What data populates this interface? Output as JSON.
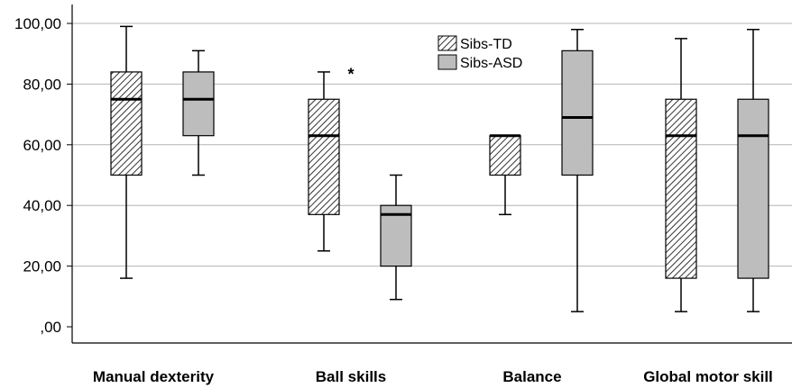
{
  "chart_data": {
    "type": "boxplot",
    "title": "",
    "xlabel": "",
    "ylabel": "",
    "ylim": [
      0,
      100
    ],
    "yticks": [
      "100,00",
      "80,00",
      "60,00",
      "40,00",
      "20,00",
      ",00"
    ],
    "ytick_values": [
      100,
      80,
      60,
      40,
      20,
      0
    ],
    "grid": true,
    "legend_position": "top-center",
    "categories": [
      "Manual dexterity",
      "Ball skills",
      "Balance",
      "Global motor skill"
    ],
    "series": [
      {
        "name": "Sibs-TD",
        "fill": "hatched",
        "boxes": [
          {
            "min": 16,
            "q1": 50,
            "median": 75,
            "q3": 84,
            "max": 99
          },
          {
            "min": 25,
            "q1": 37,
            "median": 63,
            "q3": 75,
            "max": 84,
            "outliers": [
              {
                "value": 85,
                "marker": "*"
              }
            ]
          },
          {
            "min": 37,
            "q1": 50,
            "median": 63,
            "q3": 63,
            "max": 63
          },
          {
            "min": 5,
            "q1": 16,
            "median": 63,
            "q3": 75,
            "max": 95
          }
        ]
      },
      {
        "name": "Sibs-ASD",
        "fill": "gray",
        "boxes": [
          {
            "min": 50,
            "q1": 63,
            "median": 75,
            "q3": 84,
            "max": 91
          },
          {
            "min": 9,
            "q1": 20,
            "median": 37,
            "q3": 40,
            "max": 50
          },
          {
            "min": 5,
            "q1": 50,
            "median": 69,
            "q3": 91,
            "max": 98
          },
          {
            "min": 5,
            "q1": 16,
            "median": 63,
            "q3": 75,
            "max": 98
          }
        ]
      }
    ]
  },
  "colors": {
    "gray_box": "#bdbdbd",
    "hatch": "#333333",
    "grid": "#b4b4b4",
    "axis": "#000000"
  }
}
